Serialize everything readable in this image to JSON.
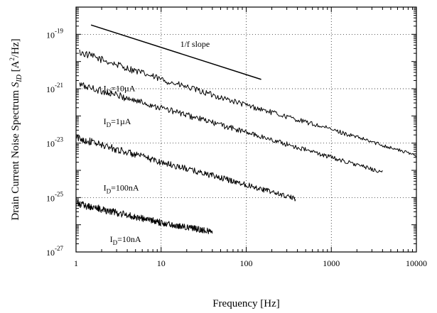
{
  "chart_data": {
    "type": "line",
    "x_scale": "log",
    "y_scale": "log",
    "xlabel": "Frequency [Hz]",
    "ylabel_main": "Drain Current Noise Spectrum ",
    "ylabel_symbol": "S",
    "ylabel_sub": "ID",
    "ylabel_unit_pre": " [A",
    "ylabel_unit_sup": "2",
    "ylabel_unit_post": "/Hz]",
    "xlim": [
      1,
      10000
    ],
    "ylim": [
      1e-27,
      1e-18
    ],
    "grid": true,
    "x_ticks": [
      {
        "value": 1,
        "label": "1"
      },
      {
        "value": 10,
        "label": "10"
      },
      {
        "value": 100,
        "label": "100"
      },
      {
        "value": 1000,
        "label": "1000"
      },
      {
        "value": 10000,
        "label": "10000"
      }
    ],
    "y_ticks": [
      {
        "value": 1e-19,
        "base": "10",
        "exp": "-19"
      },
      {
        "value": 1e-21,
        "base": "10",
        "exp": "-21"
      },
      {
        "value": 1e-23,
        "base": "10",
        "exp": "-23"
      },
      {
        "value": 1e-25,
        "base": "10",
        "exp": "-25"
      },
      {
        "value": 1e-27,
        "base": "10",
        "exp": "-27"
      }
    ],
    "series": [
      {
        "name": "I_D=10µA",
        "label_main": "I",
        "label_sub": "D",
        "label_rest": "=10µA",
        "label_at": {
          "x": 2.1,
          "y": 8e-22
        },
        "f_start": 1.1,
        "f_end": 10000,
        "x": [
          1.1,
          10,
          100,
          1000,
          10000
        ],
        "y": [
          2.2e-20,
          2.2e-21,
          2.5e-22,
          3.2e-23,
          3.5e-24
        ]
      },
      {
        "name": "I_D=1µA",
        "label_main": "I",
        "label_sub": "D",
        "label_rest": "=1µA",
        "label_at": {
          "x": 2.1,
          "y": 5e-23
        },
        "f_start": 1.1,
        "f_end": 4000,
        "x": [
          1.1,
          10,
          100,
          1000,
          4000
        ],
        "y": [
          1.4e-21,
          2e-22,
          2.5e-23,
          3e-24,
          8.5e-25
        ]
      },
      {
        "name": "I_D=100nA",
        "label_main": "I",
        "label_sub": "D",
        "label_rest": "=100nA",
        "label_at": {
          "x": 2.1,
          "y": 1.8e-25
        },
        "f_start": 1.0,
        "f_end": 380,
        "x": [
          1.0,
          10,
          100,
          380
        ],
        "y": [
          1.6e-23,
          2e-24,
          3e-25,
          9e-26
        ]
      },
      {
        "name": "I_D=10nA",
        "label_main": "I",
        "label_sub": "D",
        "label_rest": "=10nA",
        "label_at": {
          "x": 2.5,
          "y": 2.3e-27
        },
        "f_start": 1.0,
        "f_end": 40,
        "x": [
          1.0,
          10,
          40
        ],
        "y": [
          6e-26,
          1.2e-26,
          5.5e-27
        ]
      }
    ],
    "reference_line": {
      "label": "1/f slope",
      "x": [
        1.5,
        150
      ],
      "y": [
        2.2e-19,
        2.2e-21
      ],
      "label_at": {
        "x": 25,
        "y": 3.5e-20
      }
    }
  }
}
